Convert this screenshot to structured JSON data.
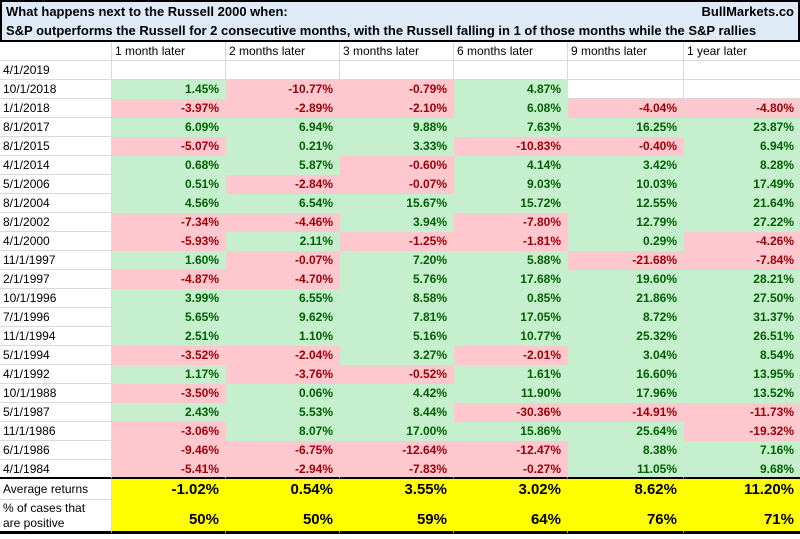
{
  "header": {
    "title_line1": "What happens next to the Russell 2000 when:",
    "brand": "BullMarkets.co",
    "title_line2": "S&P outperforms the Russell for 2 consecutive months, with the Russell falling in 1 of those months while the S&P rallies"
  },
  "colors": {
    "title_bg": "#DEEBF7",
    "positive_bg": "#C6EFCE",
    "positive_text": "#006100",
    "negative_bg": "#FFC7CE",
    "negative_text": "#9C0006",
    "summary_bg": "#FFFF00",
    "gridline": "#D9D9D9"
  },
  "table": {
    "columns": [
      "1 month later",
      "2 months later",
      "3 months later",
      "6 months later",
      "9 months later",
      "1 year later"
    ],
    "rows": [
      {
        "date": "4/1/2019",
        "values": [
          "",
          "",
          "",
          "",
          "",
          ""
        ]
      },
      {
        "date": "10/1/2018",
        "values": [
          "1.45%",
          "-10.77%",
          "-0.79%",
          "4.87%",
          "",
          ""
        ]
      },
      {
        "date": "1/1/2018",
        "values": [
          "-3.97%",
          "-2.89%",
          "-2.10%",
          "6.08%",
          "-4.04%",
          "-4.80%"
        ]
      },
      {
        "date": "8/1/2017",
        "values": [
          "6.09%",
          "6.94%",
          "9.88%",
          "7.63%",
          "16.25%",
          "23.87%"
        ]
      },
      {
        "date": "8/1/2015",
        "values": [
          "-5.07%",
          "0.21%",
          "3.33%",
          "-10.83%",
          "-0.40%",
          "6.94%"
        ]
      },
      {
        "date": "4/1/2014",
        "values": [
          "0.68%",
          "5.87%",
          "-0.60%",
          "4.14%",
          "3.42%",
          "8.28%"
        ]
      },
      {
        "date": "5/1/2006",
        "values": [
          "0.51%",
          "-2.84%",
          "-0.07%",
          "9.03%",
          "10.03%",
          "17.49%"
        ]
      },
      {
        "date": "8/1/2004",
        "values": [
          "4.56%",
          "6.54%",
          "15.67%",
          "15.72%",
          "12.55%",
          "21.64%"
        ]
      },
      {
        "date": "8/1/2002",
        "values": [
          "-7.34%",
          "-4.46%",
          "3.94%",
          "-7.80%",
          "12.79%",
          "27.22%"
        ]
      },
      {
        "date": "4/1/2000",
        "values": [
          "-5.93%",
          "2.11%",
          "-1.25%",
          "-1.81%",
          "0.29%",
          "-4.26%"
        ]
      },
      {
        "date": "11/1/1997",
        "values": [
          "1.60%",
          "-0.07%",
          "7.20%",
          "5.88%",
          "-21.68%",
          "-7.84%"
        ]
      },
      {
        "date": "2/1/1997",
        "values": [
          "-4.87%",
          "-4.70%",
          "5.76%",
          "17.68%",
          "19.60%",
          "28.21%"
        ]
      },
      {
        "date": "10/1/1996",
        "values": [
          "3.99%",
          "6.55%",
          "8.58%",
          "0.85%",
          "21.86%",
          "27.50%"
        ]
      },
      {
        "date": "7/1/1996",
        "values": [
          "5.65%",
          "9.62%",
          "7.81%",
          "17.05%",
          "8.72%",
          "31.37%"
        ]
      },
      {
        "date": "11/1/1994",
        "values": [
          "2.51%",
          "1.10%",
          "5.16%",
          "10.77%",
          "25.32%",
          "26.51%"
        ]
      },
      {
        "date": "5/1/1994",
        "values": [
          "-3.52%",
          "-2.04%",
          "3.27%",
          "-2.01%",
          "3.04%",
          "8.54%"
        ]
      },
      {
        "date": "4/1/1992",
        "values": [
          "1.17%",
          "-3.76%",
          "-0.52%",
          "1.61%",
          "16.60%",
          "13.95%"
        ]
      },
      {
        "date": "10/1/1988",
        "values": [
          "-3.50%",
          "0.06%",
          "4.42%",
          "11.90%",
          "17.96%",
          "13.52%"
        ]
      },
      {
        "date": "5/1/1987",
        "values": [
          "2.43%",
          "5.53%",
          "8.44%",
          "-30.36%",
          "-14.91%",
          "-11.73%"
        ]
      },
      {
        "date": "11/1/1986",
        "values": [
          "-3.06%",
          "8.07%",
          "17.00%",
          "15.86%",
          "25.64%",
          "-19.32%"
        ]
      },
      {
        "date": "6/1/1986",
        "values": [
          "-9.46%",
          "-6.75%",
          "-12.64%",
          "-12.47%",
          "8.38%",
          "7.16%"
        ]
      },
      {
        "date": "4/1/1984",
        "values": [
          "-5.41%",
          "-2.94%",
          "-7.83%",
          "-0.27%",
          "11.05%",
          "9.68%"
        ]
      }
    ],
    "summary": {
      "average_label": "Average returns",
      "average_values": [
        "-1.02%",
        "0.54%",
        "3.55%",
        "3.02%",
        "8.62%",
        "11.20%"
      ],
      "percent_label_line1": "% of cases that",
      "percent_label_line2": "are positive",
      "percent_values": [
        "50%",
        "50%",
        "59%",
        "64%",
        "76%",
        "71%"
      ]
    }
  }
}
